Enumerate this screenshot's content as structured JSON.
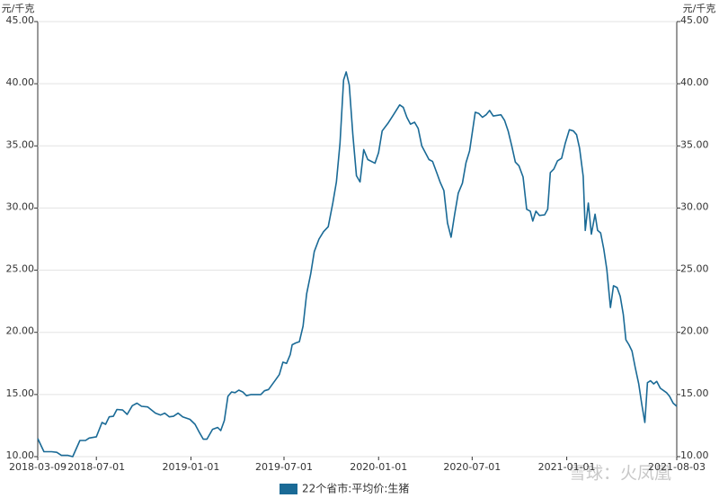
{
  "chart_data": {
    "type": "line",
    "y_label": "元/千克",
    "y2_label": "元/千克",
    "watermark": "雪球：火凤凰",
    "xlim": [
      "2018-03-09",
      "2021-08-03"
    ],
    "xticks": [
      "2018-03-09",
      "2018-07-01",
      "2019-01-01",
      "2019-07-01",
      "2020-01-01",
      "2020-07-01",
      "2021-01-01",
      "2021-08-03"
    ],
    "ylim": [
      10,
      45
    ],
    "yticks": [
      {
        "value": 10,
        "label": "10.00"
      },
      {
        "value": 15,
        "label": "15.00"
      },
      {
        "value": 20,
        "label": "20.00"
      },
      {
        "value": 25,
        "label": "25.00"
      },
      {
        "value": 30,
        "label": "30.00"
      },
      {
        "value": 35,
        "label": "35.00"
      },
      {
        "value": 40,
        "label": "40.00"
      },
      {
        "value": 45,
        "label": "45.00"
      }
    ],
    "y2lim": [
      10,
      45
    ],
    "y2ticks": [
      {
        "value": 10,
        "label": "10.00"
      },
      {
        "value": 15,
        "label": "15.00"
      },
      {
        "value": 20,
        "label": "20.00"
      },
      {
        "value": 25,
        "label": "25.00"
      },
      {
        "value": 30,
        "label": "30.00"
      },
      {
        "value": 35,
        "label": "35.00"
      },
      {
        "value": 40,
        "label": "40.00"
      },
      {
        "value": 45,
        "label": "45.00"
      }
    ],
    "grid": true,
    "legend": "bottom",
    "x": [
      "2018-03-09",
      "2018-03-21",
      "2018-04-05",
      "2018-04-15",
      "2018-04-24",
      "2018-05-07",
      "2018-05-16",
      "2018-05-30",
      "2018-06-10",
      "2018-06-17",
      "2018-07-01",
      "2018-07-12",
      "2018-07-19",
      "2018-07-26",
      "2018-08-03",
      "2018-08-10",
      "2018-08-21",
      "2018-08-30",
      "2018-09-09",
      "2018-09-18",
      "2018-09-27",
      "2018-10-09",
      "2018-10-24",
      "2018-11-03",
      "2018-11-11",
      "2018-11-20",
      "2018-11-28",
      "2018-12-07",
      "2018-12-16",
      "2018-12-30",
      "2019-01-09",
      "2019-01-18",
      "2019-01-25",
      "2019-02-01",
      "2019-02-12",
      "2019-02-22",
      "2019-02-28",
      "2019-03-07",
      "2019-03-14",
      "2019-03-21",
      "2019-03-28",
      "2019-04-04",
      "2019-04-12",
      "2019-04-19",
      "2019-04-28",
      "2019-05-17",
      "2019-05-24",
      "2019-06-01",
      "2019-06-08",
      "2019-06-15",
      "2019-06-22",
      "2019-06-29",
      "2019-07-06",
      "2019-07-13",
      "2019-07-17",
      "2019-07-24",
      "2019-07-31",
      "2019-08-07",
      "2019-08-14",
      "2019-08-22",
      "2019-08-29",
      "2019-09-07",
      "2019-09-16",
      "2019-09-25",
      "2019-10-04",
      "2019-10-11",
      "2019-10-18",
      "2019-10-25",
      "2019-10-30",
      "2019-11-05",
      "2019-11-12",
      "2019-11-19",
      "2019-11-26",
      "2019-12-03",
      "2019-12-11",
      "2019-12-25",
      "2020-01-01",
      "2020-01-08",
      "2020-01-19",
      "2020-01-30",
      "2020-02-11",
      "2020-02-18",
      "2020-02-25",
      "2020-03-03",
      "2020-03-11",
      "2020-03-18",
      "2020-03-25",
      "2020-04-01",
      "2020-04-08",
      "2020-04-15",
      "2020-04-23",
      "2020-04-30",
      "2020-05-07",
      "2020-05-14",
      "2020-05-21",
      "2020-05-28",
      "2020-06-04",
      "2020-06-12",
      "2020-06-19",
      "2020-06-26",
      "2020-07-07",
      "2020-07-14",
      "2020-07-21",
      "2020-07-28",
      "2020-08-04",
      "2020-08-11",
      "2020-08-26",
      "2020-09-02",
      "2020-09-09",
      "2020-09-16",
      "2020-09-23",
      "2020-09-30",
      "2020-10-08",
      "2020-10-15",
      "2020-10-22",
      "2020-10-27",
      "2020-11-02",
      "2020-11-09",
      "2020-11-19",
      "2020-11-25",
      "2020-11-30",
      "2020-12-07",
      "2020-12-14",
      "2020-12-22",
      "2020-12-29",
      "2021-01-06",
      "2021-01-14",
      "2021-01-20",
      "2021-01-26",
      "2021-02-02",
      "2021-02-06",
      "2021-02-12",
      "2021-02-18",
      "2021-02-25",
      "2021-03-02",
      "2021-03-08",
      "2021-03-14",
      "2021-03-20",
      "2021-03-27",
      "2021-04-02",
      "2021-04-09",
      "2021-04-15",
      "2021-04-21",
      "2021-04-26",
      "2021-05-02",
      "2021-05-08",
      "2021-05-14",
      "2021-05-21",
      "2021-05-27",
      "2021-06-02",
      "2021-06-07",
      "2021-06-13",
      "2021-06-19",
      "2021-06-25",
      "2021-07-02",
      "2021-07-14",
      "2021-07-20",
      "2021-07-27",
      "2021-08-03"
    ],
    "series": [
      {
        "name": "22个省市:平均价:生猪",
        "color": "#1a6a96",
        "values": [
          11.45,
          10.4,
          10.4,
          10.35,
          10.1,
          10.1,
          10.0,
          11.3,
          11.3,
          11.5,
          11.6,
          12.75,
          12.6,
          13.2,
          13.25,
          13.8,
          13.75,
          13.4,
          14.1,
          14.3,
          14.05,
          14.0,
          13.5,
          13.35,
          13.5,
          13.2,
          13.25,
          13.5,
          13.2,
          13.0,
          12.6,
          11.9,
          11.4,
          11.4,
          12.2,
          12.35,
          12.1,
          12.9,
          14.85,
          15.2,
          15.15,
          15.35,
          15.2,
          14.9,
          15.0,
          15.0,
          15.3,
          15.4,
          15.8,
          16.2,
          16.6,
          17.6,
          17.5,
          18.2,
          19.0,
          19.15,
          19.25,
          20.5,
          23.1,
          24.7,
          26.5,
          27.5,
          28.1,
          28.5,
          30.4,
          32.1,
          35.2,
          40.3,
          40.95,
          39.9,
          35.9,
          32.6,
          32.1,
          34.7,
          33.9,
          33.6,
          34.45,
          36.2,
          36.8,
          37.5,
          38.3,
          38.1,
          37.3,
          36.75,
          36.9,
          36.4,
          35.0,
          34.45,
          33.9,
          33.75,
          32.85,
          32.05,
          31.4,
          28.8,
          27.65,
          29.5,
          31.2,
          32.0,
          33.65,
          34.6,
          37.7,
          37.6,
          37.3,
          37.5,
          37.85,
          37.4,
          37.5,
          37.05,
          36.2,
          35.0,
          33.7,
          33.4,
          32.5,
          29.9,
          29.75,
          28.95,
          29.75,
          29.4,
          29.45,
          29.9,
          32.85,
          33.15,
          33.8,
          34.0,
          35.2,
          36.3,
          36.2,
          35.9,
          34.8,
          32.55,
          28.2,
          30.4,
          27.9,
          29.5,
          28.2,
          28.0,
          26.7,
          25.05,
          22.0,
          23.75,
          23.6,
          22.9,
          21.45,
          19.4,
          19.0,
          18.5,
          17.2,
          15.85,
          14.2,
          12.75,
          15.95,
          16.1,
          15.85,
          16.05,
          15.5,
          15.15,
          14.85,
          14.3,
          14.05
        ]
      }
    ]
  }
}
